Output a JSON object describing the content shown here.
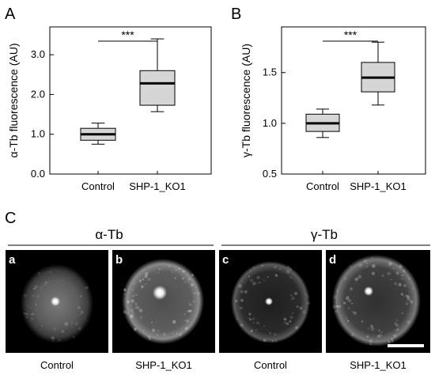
{
  "panel_letters": {
    "A": "A",
    "B": "B",
    "C": "C"
  },
  "chart_data": [
    {
      "type": "box",
      "panel": "A",
      "title": "",
      "ylabel": "α-Tb fluorescence (AU)",
      "ylim": [
        0.0,
        3.7
      ],
      "yticks": [
        0.0,
        1.0,
        2.0,
        3.0
      ],
      "ytick_labels": [
        "0.0",
        "1.0",
        "2.0",
        "3.0"
      ],
      "categories": [
        "Control",
        "SHP-1_KO1"
      ],
      "boxes": [
        {
          "min": 0.75,
          "q1": 0.85,
          "median": 1.0,
          "q3": 1.15,
          "max": 1.28
        },
        {
          "min": 1.57,
          "q1": 1.73,
          "median": 2.28,
          "q3": 2.6,
          "max": 3.4
        }
      ],
      "significance": "***"
    },
    {
      "type": "box",
      "panel": "B",
      "title": "",
      "ylabel": "γ-Tb fluorescence (AU)",
      "ylim": [
        0.5,
        1.95
      ],
      "yticks": [
        0.5,
        1.0,
        1.5
      ],
      "ytick_labels": [
        "0.5",
        "1.0",
        "1.5"
      ],
      "categories": [
        "Control",
        "SHP-1_KO1"
      ],
      "boxes": [
        {
          "min": 0.86,
          "q1": 0.92,
          "median": 1.0,
          "q3": 1.09,
          "max": 1.14
        },
        {
          "min": 1.18,
          "q1": 1.31,
          "median": 1.45,
          "q3": 1.6,
          "max": 1.8
        }
      ],
      "significance": "***"
    }
  ],
  "micrographs": {
    "group_labels": [
      "α-Tb",
      "γ-Tb"
    ],
    "panels": [
      {
        "letter": "a",
        "caption": "Control"
      },
      {
        "letter": "b",
        "caption": "SHP-1_KO1"
      },
      {
        "letter": "c",
        "caption": "Control"
      },
      {
        "letter": "d",
        "caption": "SHP-1_KO1"
      }
    ]
  }
}
